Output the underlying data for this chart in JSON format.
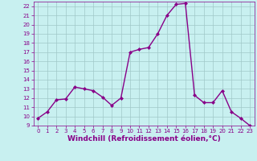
{
  "x": [
    0,
    1,
    2,
    3,
    4,
    5,
    6,
    7,
    8,
    9,
    10,
    11,
    12,
    13,
    14,
    15,
    16,
    17,
    18,
    19,
    20,
    21,
    22,
    23
  ],
  "y": [
    9.8,
    10.5,
    11.8,
    11.9,
    13.2,
    13.0,
    12.8,
    12.1,
    11.2,
    12.0,
    17.0,
    17.3,
    17.5,
    19.0,
    21.0,
    22.2,
    22.3,
    12.3,
    11.5,
    11.5,
    12.8,
    10.5,
    9.8,
    9.0
  ],
  "line_color": "#880088",
  "marker": "D",
  "marker_size": 2.0,
  "bg_color": "#c8f0f0",
  "grid_color": "#a0c8c8",
  "xlabel": "Windchill (Refroidissement éolien,°C)",
  "xlim": [
    -0.5,
    23.5
  ],
  "ylim": [
    9,
    22.5
  ],
  "yticks": [
    9,
    10,
    11,
    12,
    13,
    14,
    15,
    16,
    17,
    18,
    19,
    20,
    21,
    22
  ],
  "xticks": [
    0,
    1,
    2,
    3,
    4,
    5,
    6,
    7,
    8,
    9,
    10,
    11,
    12,
    13,
    14,
    15,
    16,
    17,
    18,
    19,
    20,
    21,
    22,
    23
  ],
  "tick_color": "#880088",
  "tick_fontsize": 5.0,
  "xlabel_fontsize": 6.5,
  "line_width": 1.0
}
